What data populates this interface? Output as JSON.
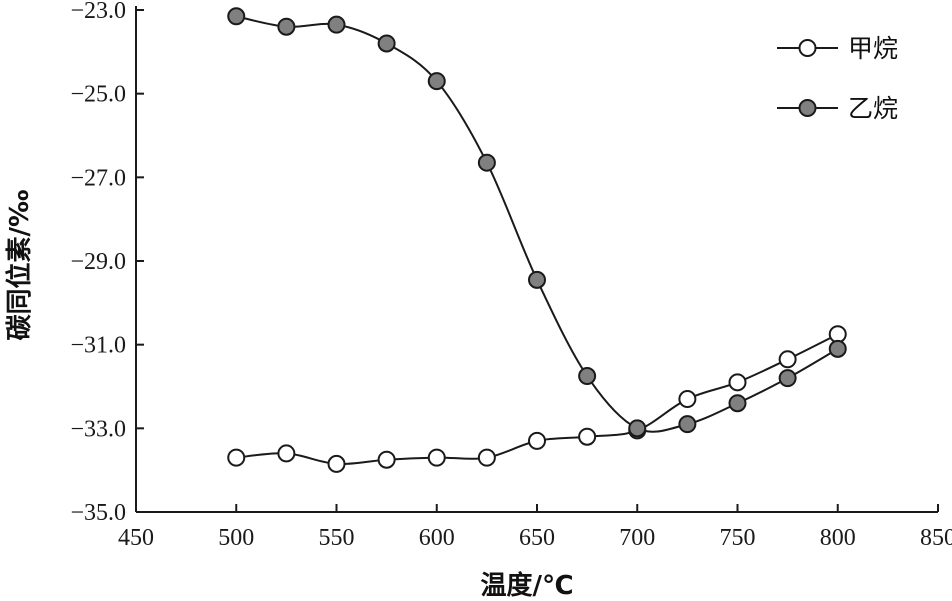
{
  "chart_data": {
    "type": "line",
    "xlabel": "温度/℃",
    "ylabel": "碳同位素/‰",
    "xlim": [
      450,
      850
    ],
    "ylim": [
      -35.0,
      -23.0
    ],
    "x_ticks": [
      "450",
      "500",
      "550",
      "600",
      "650",
      "700",
      "750",
      "800",
      "850"
    ],
    "y_ticks": [
      "−23.0",
      "−25.0",
      "−27.0",
      "−29.0",
      "−31.0",
      "−33.0",
      "−35.0"
    ],
    "y_tick_values": [
      -23.0,
      -25.0,
      -27.0,
      -29.0,
      -31.0,
      -33.0,
      -35.0
    ],
    "x_tick_values": [
      450,
      500,
      550,
      600,
      650,
      700,
      750,
      800,
      850
    ],
    "grid": false,
    "legend_position": "top-right",
    "x": [
      500,
      525,
      550,
      575,
      600,
      625,
      650,
      675,
      700,
      725,
      750,
      775,
      800
    ],
    "series": [
      {
        "name": "甲烷",
        "marker": "open-circle",
        "values": [
          -33.7,
          -33.6,
          -33.85,
          -33.75,
          -33.7,
          -33.7,
          -33.3,
          -33.2,
          -33.05,
          -32.3,
          -31.9,
          -31.35,
          -30.75
        ]
      },
      {
        "name": "乙烷",
        "marker": "filled-circle",
        "values": [
          -23.15,
          -23.4,
          -23.35,
          -23.8,
          -24.7,
          -26.65,
          -29.45,
          -31.75,
          -33.0,
          -32.9,
          -32.4,
          -31.8,
          -31.1
        ]
      }
    ],
    "colors": {
      "line": "#1a1a1a",
      "filled_marker": "#808080",
      "open_marker": "#ffffff"
    }
  }
}
